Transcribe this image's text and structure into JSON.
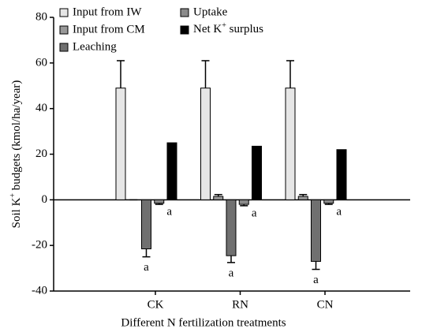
{
  "chart_data": {
    "type": "bar",
    "ylabel": "Soil K+ budgets (kmol/ha/year)",
    "xlabel": "Different N fertilization treatments",
    "categories": [
      "CK",
      "RN",
      "CN"
    ],
    "series": [
      {
        "name": "Input from IW",
        "color": "#e6e6e6",
        "values": [
          49,
          49,
          49
        ],
        "errors": [
          12,
          12,
          12
        ]
      },
      {
        "name": "Input from CM",
        "color": "#999999",
        "values": [
          0,
          1.5,
          1.5
        ],
        "errors": [
          0,
          0.8,
          0.8
        ]
      },
      {
        "name": "Leaching",
        "color": "#707070",
        "values": [
          -21.5,
          -24.5,
          -27
        ],
        "errors": [
          3.5,
          3,
          3.5
        ],
        "notes": [
          "a",
          "a",
          "a"
        ]
      },
      {
        "name": "Uptake",
        "color": "#8a8a8a",
        "values": [
          -1.5,
          -2,
          -1.5
        ],
        "errors": [
          0.5,
          0.6,
          0.5
        ],
        "notes": [
          "a",
          "a",
          "a"
        ]
      },
      {
        "name": "Net K+ surplus",
        "color": "#000000",
        "values": [
          25,
          23.5,
          22
        ]
      }
    ],
    "ylim": [
      -40,
      80
    ],
    "yticks": [
      -40,
      -20,
      0,
      20,
      40,
      60,
      80
    ],
    "grid": false,
    "legend": "upper left"
  }
}
